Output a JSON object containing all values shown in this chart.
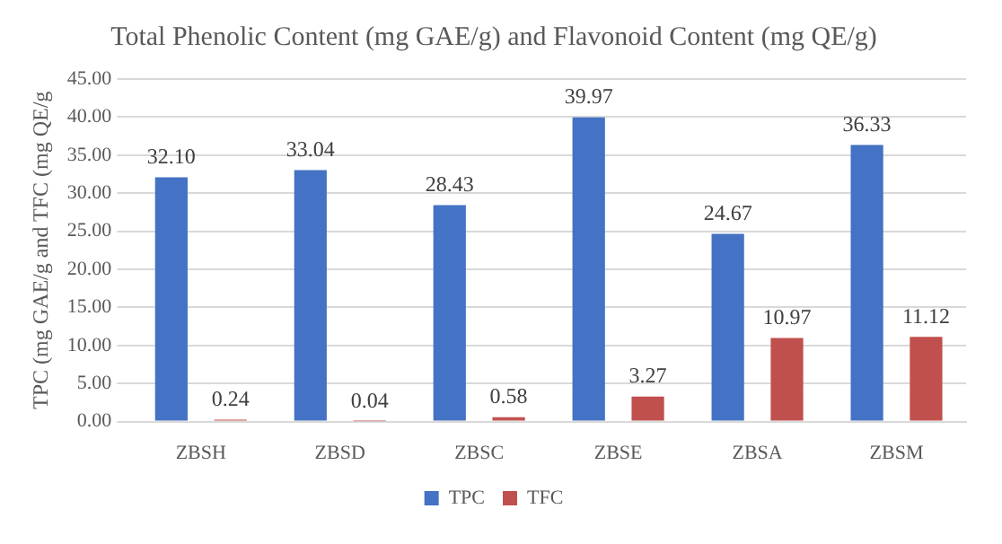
{
  "chart_data": {
    "type": "bar",
    "title": "Total Phenolic Content (mg GAE/g) and Flavonoid Content (mg QE/g)",
    "ylabel": "TPC (mg GAE/g and TFC (mg QE/g",
    "categories": [
      "ZBSH",
      "ZBSD",
      "ZBSC",
      "ZBSE",
      "ZBSA",
      "ZBSM"
    ],
    "series": [
      {
        "name": "TPC",
        "color": "#4472c4",
        "values": [
          32.1,
          33.04,
          28.43,
          39.97,
          24.67,
          36.33
        ],
        "value_labels": [
          "32.10",
          "33.04",
          "28.43",
          "39.97",
          "24.67",
          "36.33"
        ]
      },
      {
        "name": "TFC",
        "color": "#c0504d",
        "values": [
          0.24,
          0.04,
          0.58,
          3.27,
          10.97,
          11.12
        ],
        "value_labels": [
          "0.24",
          "0.04",
          "0.58",
          "3.27",
          "10.97",
          "11.12"
        ]
      }
    ],
    "ylim": [
      0,
      45
    ],
    "yticks": [
      {
        "value": 0,
        "label": "0.00"
      },
      {
        "value": 5,
        "label": "5.00"
      },
      {
        "value": 10,
        "label": "10.00"
      },
      {
        "value": 15,
        "label": "15.00"
      },
      {
        "value": 20,
        "label": "20.00"
      },
      {
        "value": 25,
        "label": "25.00"
      },
      {
        "value": 30,
        "label": "30.00"
      },
      {
        "value": 35,
        "label": "35.00"
      },
      {
        "value": 40,
        "label": "40.00"
      },
      {
        "value": 45,
        "label": "45.00"
      }
    ],
    "grid": "y",
    "legend": "bottom"
  }
}
